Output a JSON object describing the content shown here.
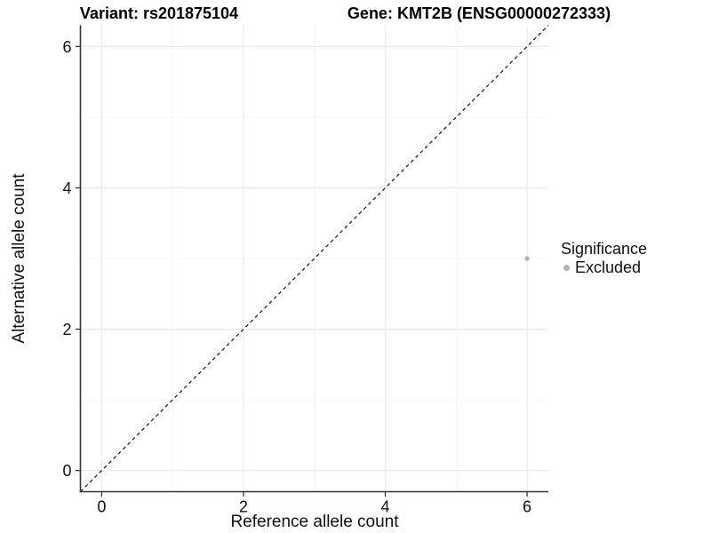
{
  "titles": {
    "variant": "Variant: rs201875104",
    "gene": "Gene: KMT2B (ENSG00000272333)"
  },
  "chart_data": {
    "type": "scatter",
    "title": "Variant: rs201875104   Gene: KMT2B (ENSG00000272333)",
    "xlabel": "Reference allele count",
    "ylabel": "Alternative allele count",
    "xlim": [
      -0.3,
      6.3
    ],
    "ylim": [
      -0.3,
      6.3
    ],
    "x_ticks": [
      0,
      2,
      4,
      6
    ],
    "y_ticks": [
      0,
      2,
      4,
      6
    ],
    "x_minor_ticks": [
      1,
      3,
      5
    ],
    "y_minor_ticks": [
      1,
      3,
      5
    ],
    "grid": "major and minor, light gray on white",
    "identity_line": {
      "slope": 1,
      "intercept": 0,
      "style": "dashed",
      "color": "#111111"
    },
    "series": [
      {
        "name": "Excluded",
        "color": "#b4b4b4",
        "points": [
          {
            "x": 6,
            "y": 3
          }
        ]
      }
    ],
    "legend": {
      "title": "Significance",
      "position": "right",
      "entries": [
        {
          "label": "Excluded",
          "color": "#b4b4b4",
          "marker": "circle"
        }
      ]
    }
  },
  "colors": {
    "background": "#ffffff",
    "axis_line": "#333333",
    "grid_major": "#ebebeb",
    "grid_minor": "#f4f4f4",
    "tick_text": "#111111",
    "point": "#b4b4b4"
  }
}
